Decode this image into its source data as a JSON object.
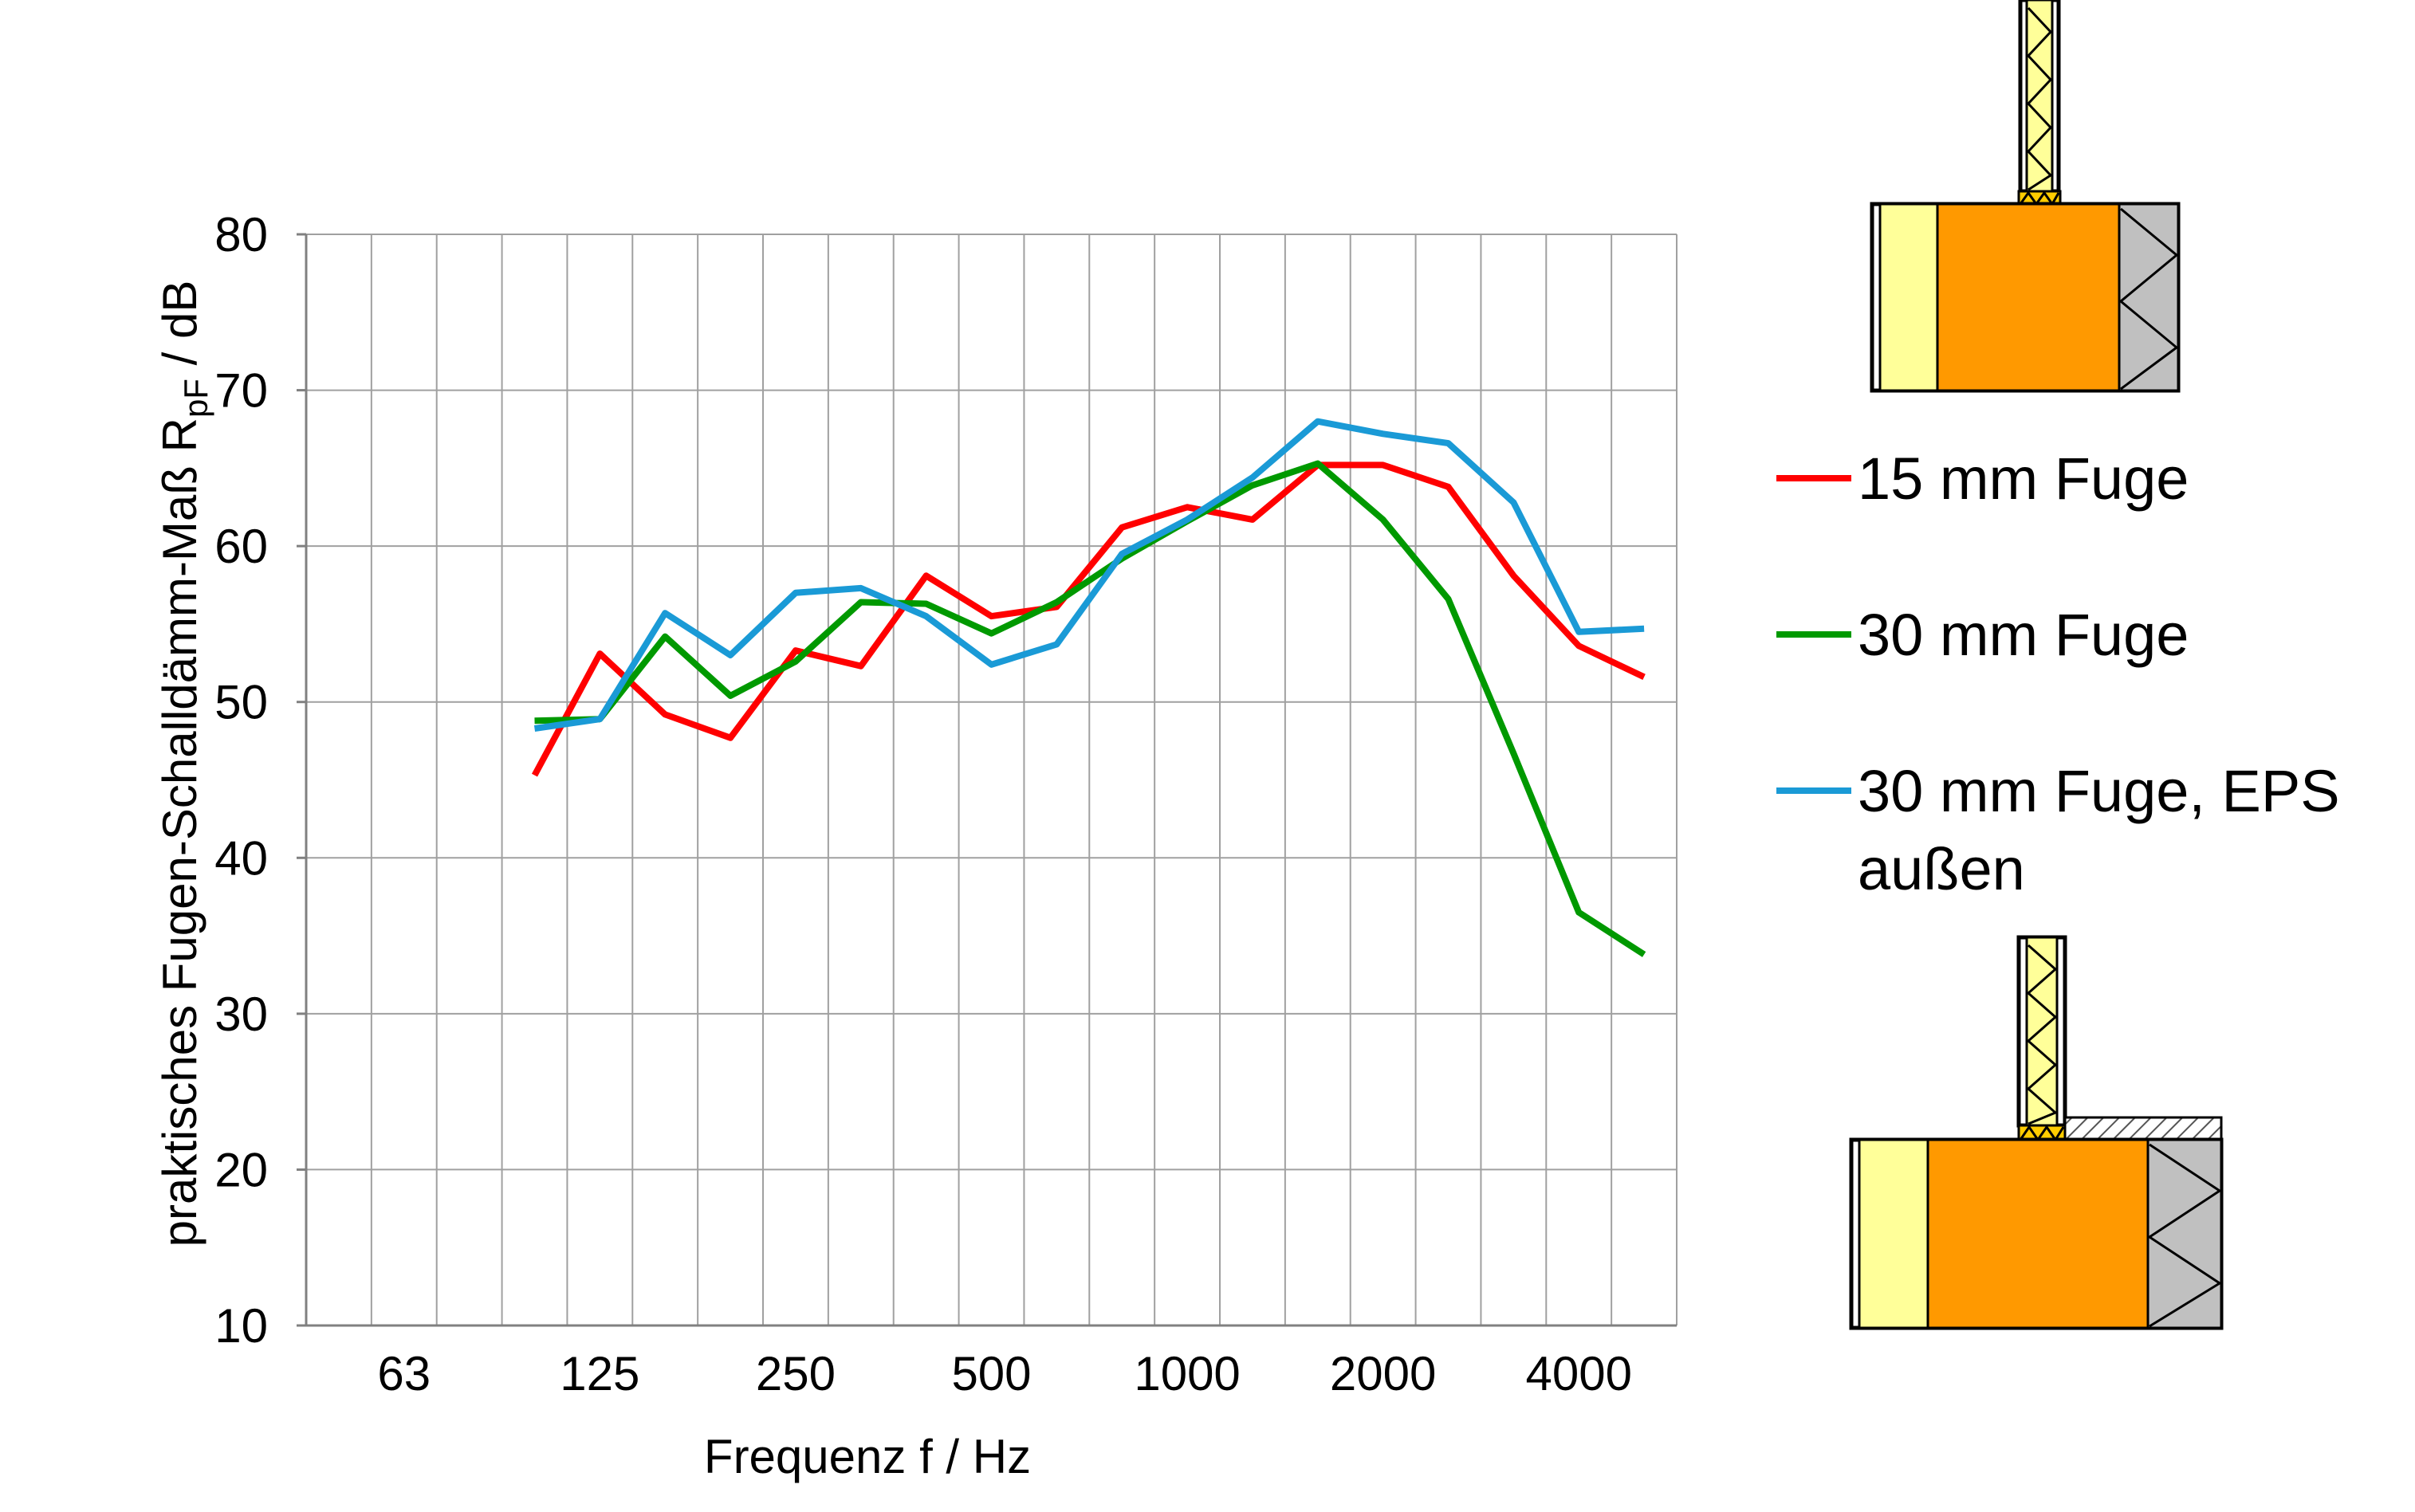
{
  "chart_data": {
    "type": "line",
    "title": "",
    "xlabel": "Frequenz f / Hz",
    "ylabel": {
      "prefix": "praktisches Fugen-Schalldämm-Maß R",
      "subscript": "pF",
      "suffix": " / dB"
    },
    "ylim": [
      10,
      80
    ],
    "yticks": [
      10,
      20,
      30,
      40,
      50,
      60,
      70,
      80
    ],
    "x": [
      50,
      63,
      80,
      100,
      125,
      160,
      200,
      250,
      315,
      400,
      500,
      630,
      800,
      1000,
      1250,
      1600,
      2000,
      2500,
      3150,
      4000,
      5000
    ],
    "xtick_labels": [
      "63",
      "125",
      "250",
      "500",
      "1000",
      "2000",
      "4000"
    ],
    "grid": true,
    "legend_position": "right",
    "series": [
      {
        "name": "15 mm Fuge",
        "color": "#ff0000",
        "values": [
          null,
          null,
          null,
          45.3,
          53.1,
          49.2,
          47.7,
          53.3,
          52.3,
          58.1,
          55.5,
          56.1,
          61.2,
          62.5,
          61.7,
          65.2,
          65.2,
          63.8,
          58.1,
          53.6,
          51.6
        ]
      },
      {
        "name": "30 mm Fuge",
        "color": "#009900",
        "values": [
          null,
          null,
          null,
          48.8,
          48.9,
          54.2,
          50.4,
          52.6,
          56.4,
          56.3,
          54.4,
          56.4,
          59.2,
          61.6,
          63.9,
          65.3,
          61.7,
          56.6,
          46.7,
          36.5,
          33.8
        ]
      },
      {
        "name": "30 mm Fuge, EPS außen",
        "color": "#1a9ad6",
        "values": [
          null,
          null,
          null,
          48.3,
          48.9,
          55.7,
          53.0,
          57.0,
          57.3,
          55.5,
          52.4,
          53.7,
          59.5,
          61.7,
          64.4,
          68.0,
          67.2,
          66.6,
          62.8,
          54.5,
          54.7
        ]
      }
    ]
  }
}
